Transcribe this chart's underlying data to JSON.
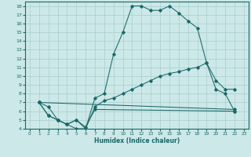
{
  "xlabel": "Humidex (Indice chaleur)",
  "background_color": "#cce8e8",
  "grid_color": "#aacece",
  "line_color": "#1a6868",
  "xlim": [
    -0.5,
    23.5
  ],
  "ylim": [
    4,
    18.5
  ],
  "xticks": [
    0,
    1,
    2,
    3,
    4,
    5,
    6,
    7,
    8,
    9,
    10,
    11,
    12,
    13,
    14,
    15,
    16,
    17,
    18,
    19,
    20,
    21,
    22,
    23
  ],
  "yticks": [
    4,
    5,
    6,
    7,
    8,
    9,
    10,
    11,
    12,
    13,
    14,
    15,
    16,
    17,
    18
  ],
  "line1_x": [
    1,
    2,
    3,
    4,
    5,
    6,
    7,
    8,
    9,
    10,
    11,
    12,
    13,
    14,
    15,
    16,
    17,
    18,
    19,
    20,
    21,
    22
  ],
  "line1_y": [
    7,
    6.5,
    5,
    4.5,
    4,
    4,
    7.5,
    8,
    12.5,
    15,
    18,
    18,
    17.5,
    17.5,
    18,
    17.2,
    16.3,
    15.5,
    11.5,
    8.5,
    8,
    6
  ],
  "line2_x": [
    1,
    2,
    3,
    4,
    5,
    6,
    7,
    8,
    9,
    10,
    11,
    12,
    13,
    14,
    15,
    16,
    17,
    18,
    19,
    20,
    21,
    22
  ],
  "line2_y": [
    7,
    5.5,
    5,
    4.5,
    5,
    4,
    6.5,
    7.2,
    7.5,
    8,
    8.5,
    9,
    9.5,
    10,
    10.3,
    10.5,
    10.8,
    11,
    11.5,
    9.5,
    8.5,
    8.5
  ],
  "line3_x": [
    1,
    2,
    3,
    4,
    5,
    6,
    7,
    22
  ],
  "line3_y": [
    7,
    5.5,
    5,
    4.5,
    5,
    4.2,
    6.2,
    6
  ],
  "line4_x": [
    1,
    22
  ],
  "line4_y": [
    7,
    6.2
  ]
}
